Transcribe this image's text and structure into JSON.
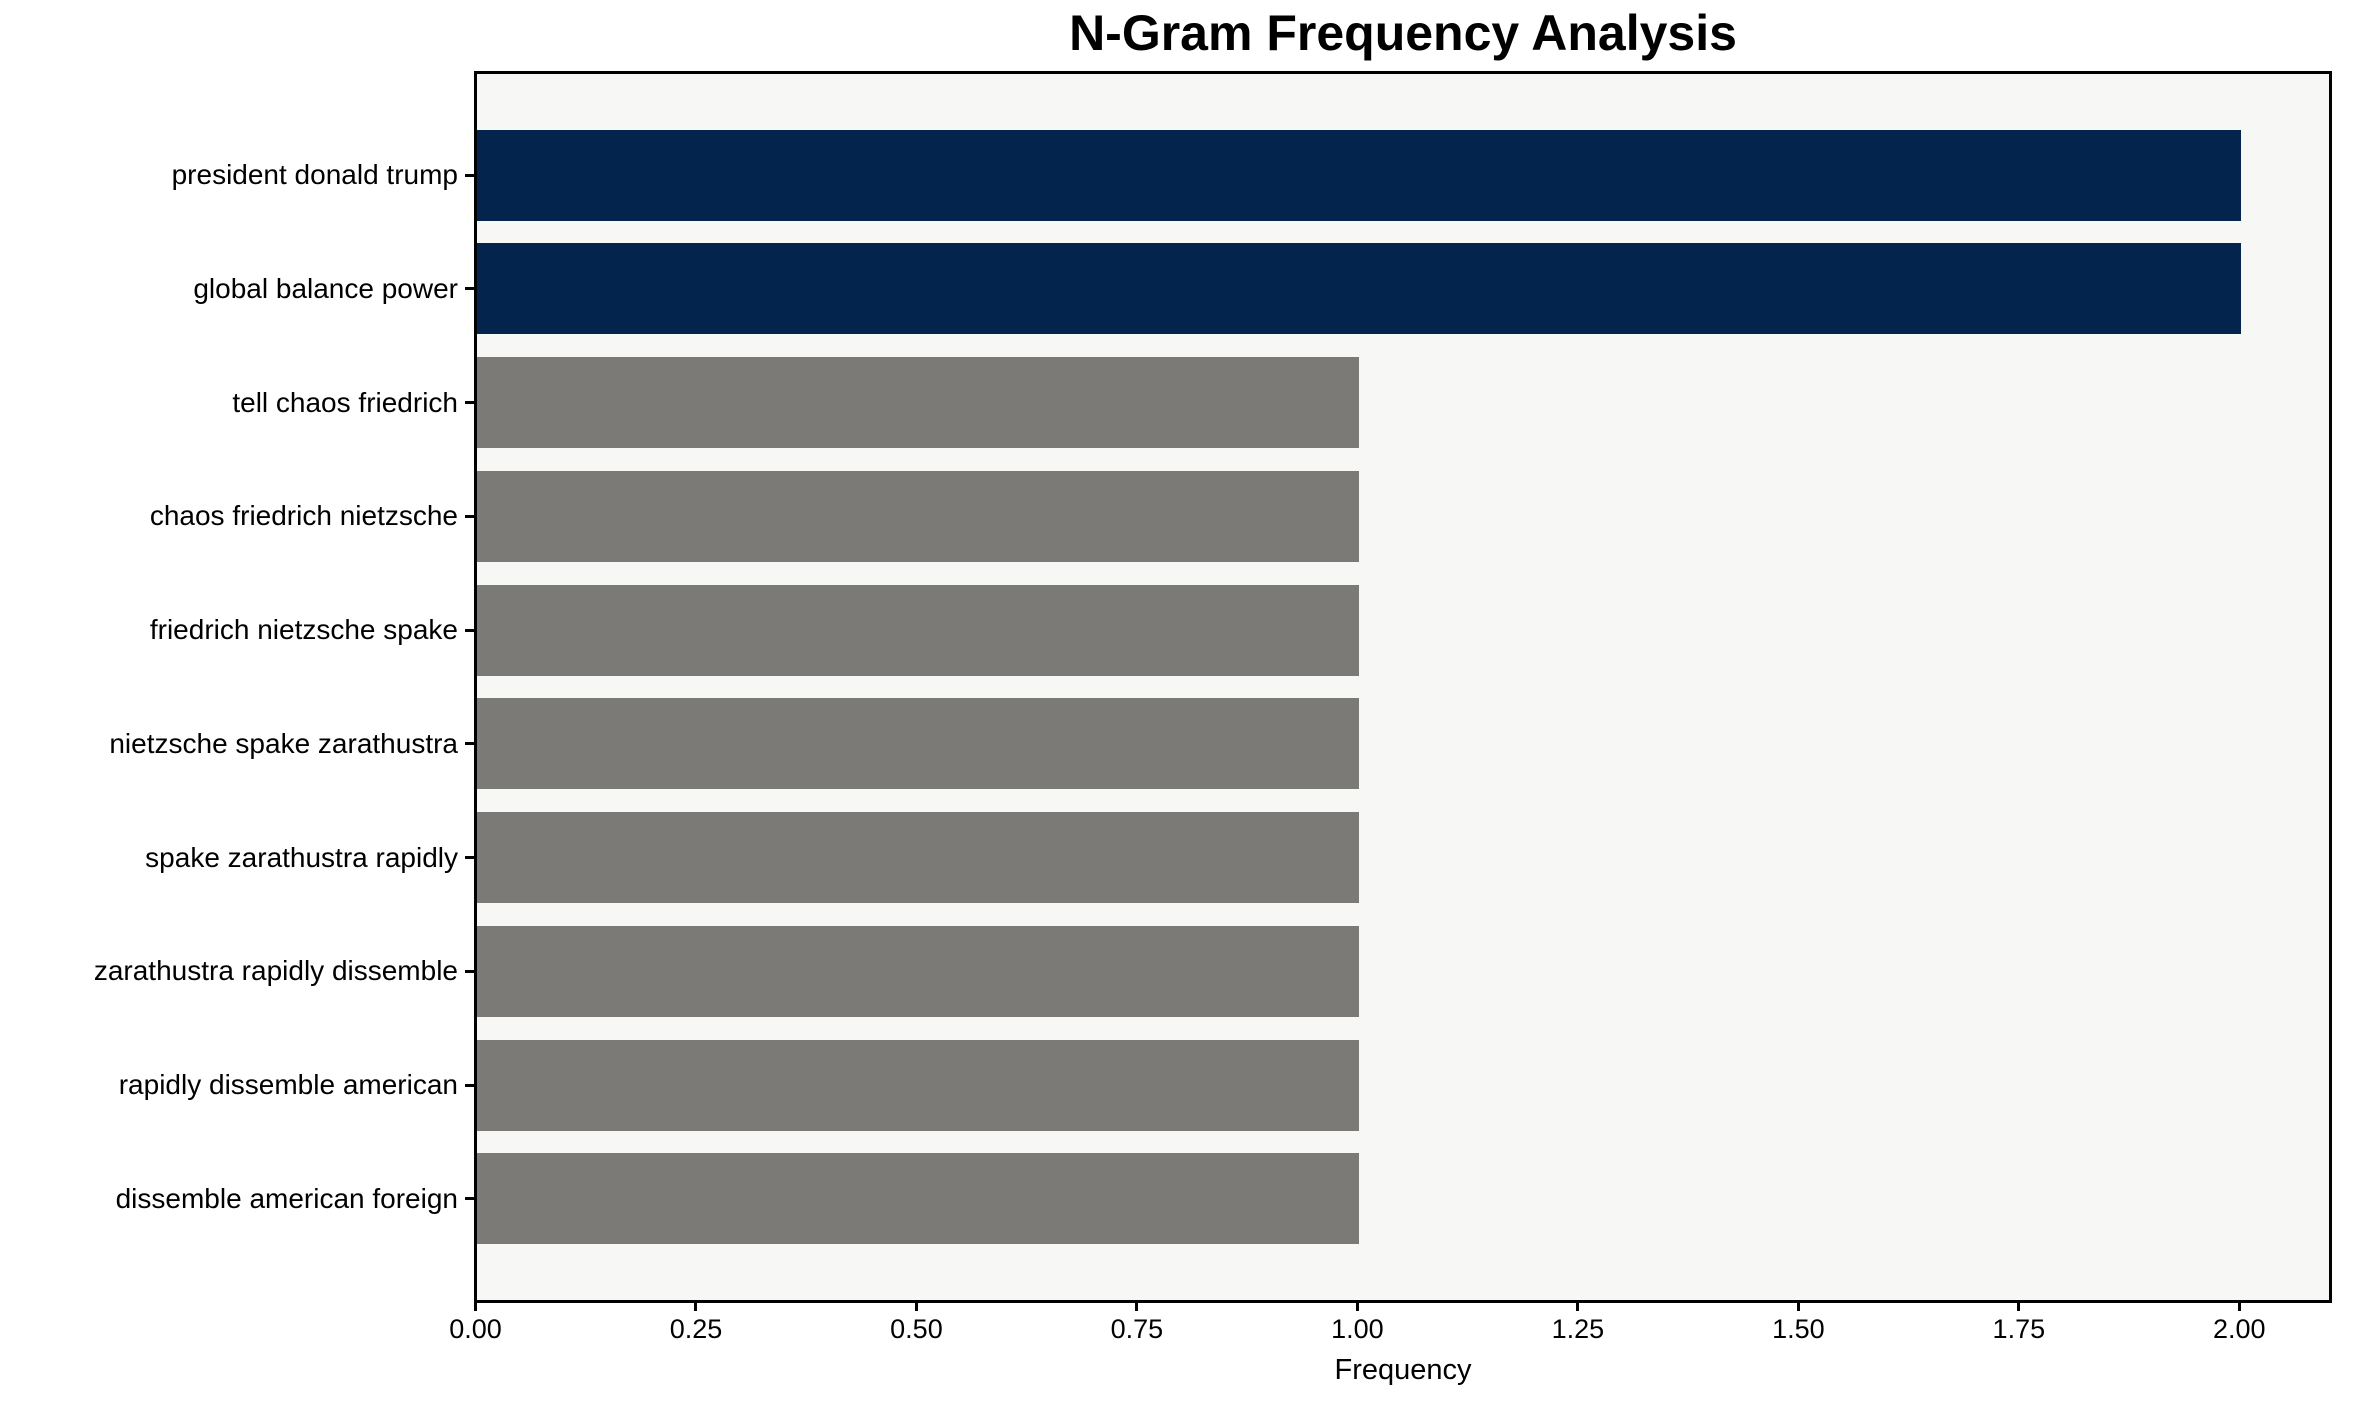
{
  "chart_data": {
    "type": "bar",
    "orientation": "horizontal",
    "title": "N-Gram Frequency Analysis",
    "xlabel": "Frequency",
    "ylabel": "",
    "categories": [
      "president donald trump",
      "global balance power",
      "tell chaos friedrich",
      "chaos friedrich nietzsche",
      "friedrich nietzsche spake",
      "nietzsche spake zarathustra",
      "spake zarathustra rapidly",
      "zarathustra rapidly dissemble",
      "rapidly dissemble american",
      "dissemble american foreign"
    ],
    "values": [
      2,
      2,
      1,
      1,
      1,
      1,
      1,
      1,
      1,
      1
    ],
    "bar_colors": [
      "#02244d",
      "#02244d",
      "#7b7a77",
      "#7b7a77",
      "#7b7a77",
      "#7b7a77",
      "#7b7a77",
      "#7b7a77",
      "#7b7a77",
      "#7b7a77"
    ],
    "highlight_color": "#02244d",
    "default_color": "#7b7a77",
    "plot_background": "#f7f7f6",
    "axis_color": "#000000",
    "xlim": [
      0,
      2.1
    ],
    "xticks": [
      "0.00",
      "0.25",
      "0.50",
      "0.75",
      "1.00",
      "1.25",
      "1.50",
      "1.75",
      "2.00"
    ],
    "xtick_values": [
      0,
      0.25,
      0.5,
      0.75,
      1.0,
      1.25,
      1.5,
      1.75,
      2.0
    ],
    "grid": false,
    "legend": null
  }
}
